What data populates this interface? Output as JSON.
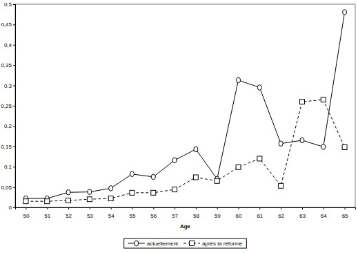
{
  "chart_data": {
    "type": "line",
    "x_label": "Age",
    "categories": [
      "50",
      "51",
      "52",
      "53",
      "54",
      "55",
      "56",
      "57",
      "58",
      "59",
      "60",
      "61",
      "62",
      "63",
      "64",
      "65"
    ],
    "series": [
      {
        "name": "actuellement",
        "color": "#000000",
        "marker": "circle",
        "line_style": "solid",
        "values": [
          0.022,
          0.022,
          0.037,
          0.038,
          0.047,
          0.082,
          0.075,
          0.116,
          0.143,
          0.07,
          0.313,
          0.295,
          0.157,
          0.165,
          0.149,
          0.48
        ]
      },
      {
        "name": "après la réforme",
        "color": "#000000",
        "marker": "square",
        "line_style": "dashed",
        "values": [
          0.015,
          0.015,
          0.017,
          0.02,
          0.022,
          0.036,
          0.036,
          0.044,
          0.074,
          0.065,
          0.099,
          0.12,
          0.053,
          0.26,
          0.265,
          0.148
        ]
      }
    ],
    "ylim": [
      0,
      0.5
    ],
    "yticks": [
      0,
      {
        "value": 0.05,
        "label": "0,05"
      },
      {
        "value": 0.1,
        "label": "0,1"
      },
      {
        "value": 0.15,
        "label": "0,15"
      },
      {
        "value": 0.2,
        "label": "0,2"
      },
      {
        "value": 0.25,
        "label": "0,25"
      },
      {
        "value": 0.3,
        "label": "0,3"
      },
      {
        "value": 0.35,
        "label": "0,35"
      },
      {
        "value": 0.4,
        "label": "0,4"
      },
      {
        "value": 0.45,
        "label": "0,45"
      },
      {
        "value": 0.5,
        "label": "0,5"
      }
    ],
    "grid": false,
    "legend": "bottom"
  }
}
